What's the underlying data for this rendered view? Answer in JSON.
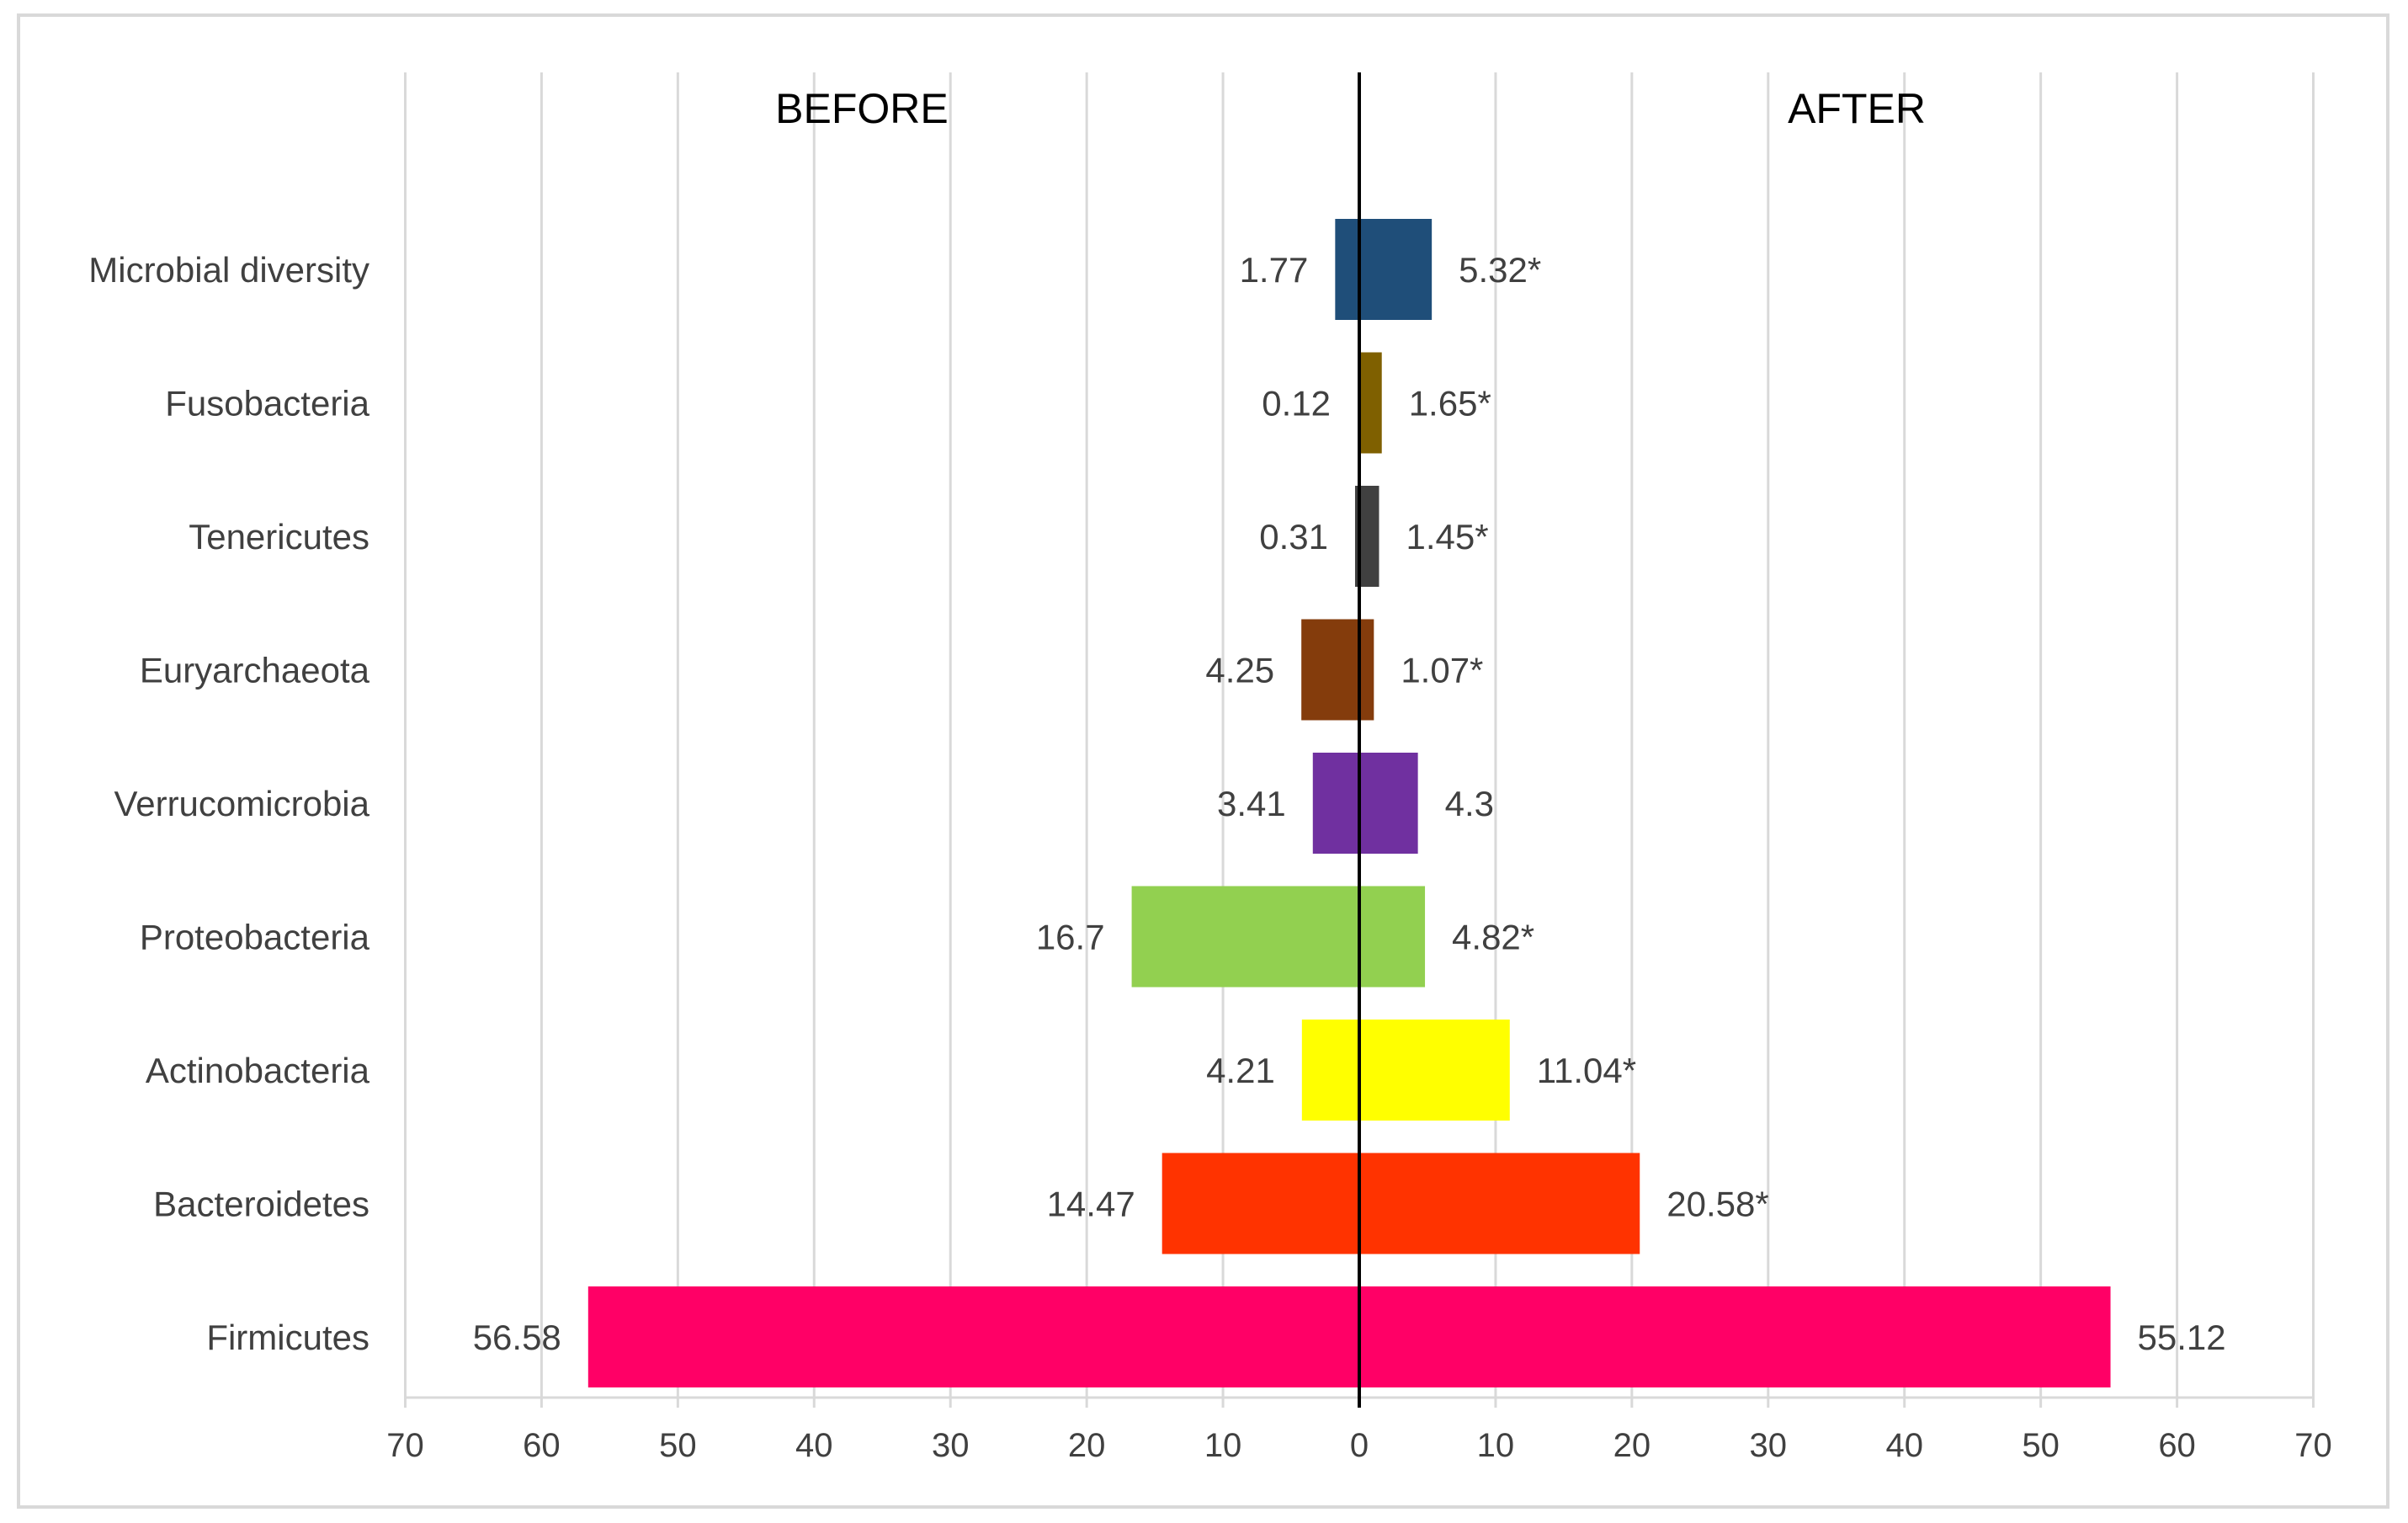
{
  "chart_data": {
    "type": "bar",
    "orientation": "horizontal-diverging",
    "title": "",
    "xlabel": "",
    "ylabel": "",
    "side_titles": {
      "left": "BEFORE",
      "right": "AFTER"
    },
    "categories": [
      "Microbial diversity",
      "Fusobacteria",
      "Tenericutes",
      "Euryarchaeota",
      "Verrucomicrobia",
      "Proteobacteria",
      "Actinobacteria",
      "Bacteroidetes",
      "Firmicutes"
    ],
    "series": [
      {
        "name": "BEFORE",
        "values": [
          1.77,
          0.12,
          0.31,
          4.25,
          3.41,
          16.7,
          4.21,
          14.47,
          56.58
        ],
        "labels": [
          "1.77",
          "0.12",
          "0.31",
          "4.25",
          "3.41",
          "16.7",
          "4.21",
          "14.47",
          "56.58"
        ]
      },
      {
        "name": "AFTER",
        "values": [
          5.32,
          1.65,
          1.45,
          1.07,
          4.3,
          4.82,
          11.04,
          20.58,
          55.12
        ],
        "labels": [
          "5.32*",
          "1.65*",
          "1.45*",
          "1.07*",
          "4.3",
          "4.82*",
          "11.04*",
          "20.58*",
          "55.12"
        ]
      }
    ],
    "colors": [
      "#1f4e79",
      "#7f6000",
      "#404040",
      "#843c0c",
      "#7030a0",
      "#92d050",
      "#ffff00",
      "#ff3300",
      "#ff0066"
    ],
    "xlim": [
      -70,
      70
    ],
    "xticks": [
      -70,
      -60,
      -50,
      -40,
      -30,
      -20,
      -10,
      0,
      10,
      20,
      30,
      40,
      50,
      60,
      70
    ],
    "xtick_labels": [
      "70",
      "60",
      "50",
      "40",
      "30",
      "20",
      "10",
      "0",
      "10",
      "20",
      "30",
      "40",
      "50",
      "60",
      "70"
    ],
    "grid": true,
    "legend": "none",
    "gridline_color": "#d9d9d9",
    "axis_color": "#000000"
  }
}
